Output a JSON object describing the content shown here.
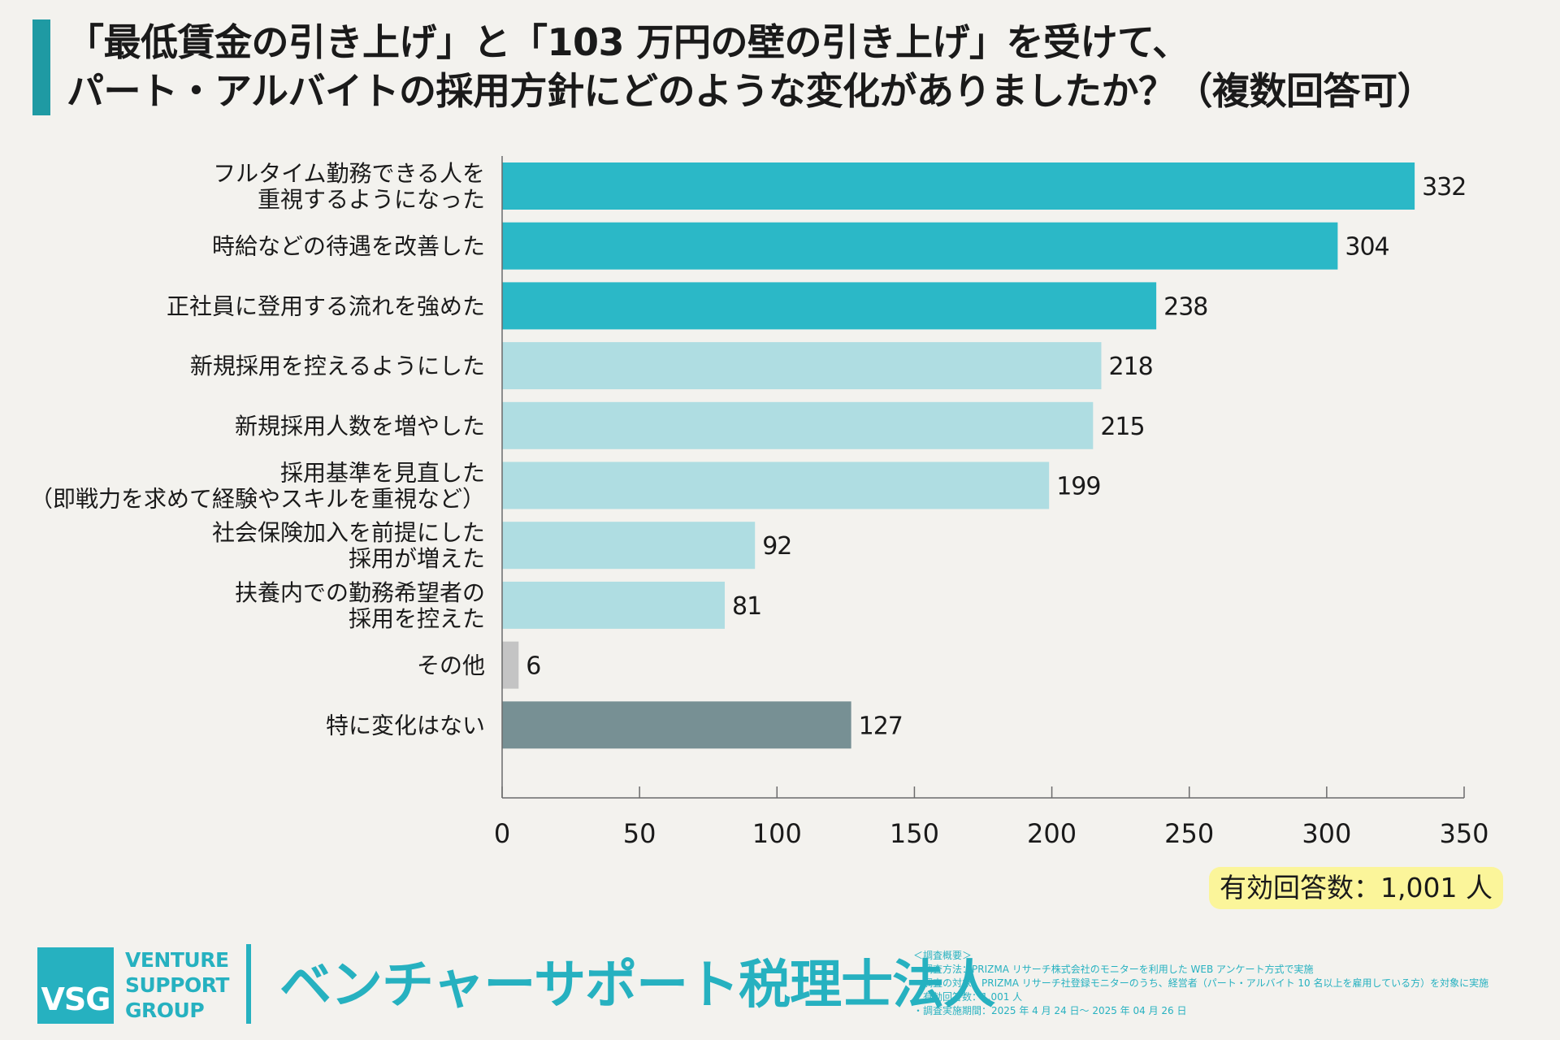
{
  "title": {
    "line1": "「最低賃金の引き上げ」と「103 万円の壁の引き上げ」を受けて、",
    "line2": "パート・アルバイトの採用方針にどのような変化がありましたか？（複数回答可）"
  },
  "chart_data": {
    "type": "bar",
    "orientation": "horizontal",
    "categories": [
      [
        "フルタイム勤務できる人を",
        "重視するようになった"
      ],
      [
        "時給などの待遇を改善した"
      ],
      [
        "正社員に登用する流れを強めた"
      ],
      [
        "新規採用を控えるようにした"
      ],
      [
        "新規採用人数を増やした"
      ],
      [
        "採用基準を見直した",
        "（即戦力を求めて経験やスキルを重視など）"
      ],
      [
        "社会保険加入を前提にした",
        "採用が増えた"
      ],
      [
        "扶養内での勤務希望者の",
        "採用を控えた"
      ],
      [
        "その他"
      ],
      [
        "特に変化はない"
      ]
    ],
    "values": [
      332,
      304,
      238,
      218,
      215,
      199,
      92,
      81,
      6,
      127
    ],
    "value_labels": [
      "332",
      "304",
      "238",
      "218",
      "215",
      "199",
      "92",
      "81",
      "6",
      "127"
    ],
    "bar_colors": [
      "#2bb8c7",
      "#2bb8c7",
      "#2bb8c7",
      "#afdde2",
      "#afdde2",
      "#afdde2",
      "#afdde2",
      "#afdde2",
      "#c4c4c4",
      "#779094"
    ],
    "xlim": [
      0,
      350
    ],
    "xticks": [
      0,
      50,
      100,
      150,
      200,
      250,
      300,
      350
    ],
    "grid": false
  },
  "respondents": "有効回答数：1,001 人",
  "footer": {
    "logo_mark": "VSG",
    "logo_words": [
      "VENTURE",
      "SUPPORT",
      "GROUP"
    ],
    "company_name": "ベンチャーサポート税理士法人",
    "notes": [
      "＜調査概要＞",
      "・調査方法：PRIZMA リサーチ株式会社のモニターを利用した WEB アンケート方式で実施",
      "・調査の対象：PRIZMA リサーチ社登録モニターのうち、経営者（パート・アルバイト 10 名以上を雇用している方）を対象に実施",
      "・有効回答数：1,001 人",
      "・調査実施期間：2025 年 4 月 24 日～ 2025 年 04 月 26 日"
    ],
    "brand_color": "#26b1c0"
  }
}
